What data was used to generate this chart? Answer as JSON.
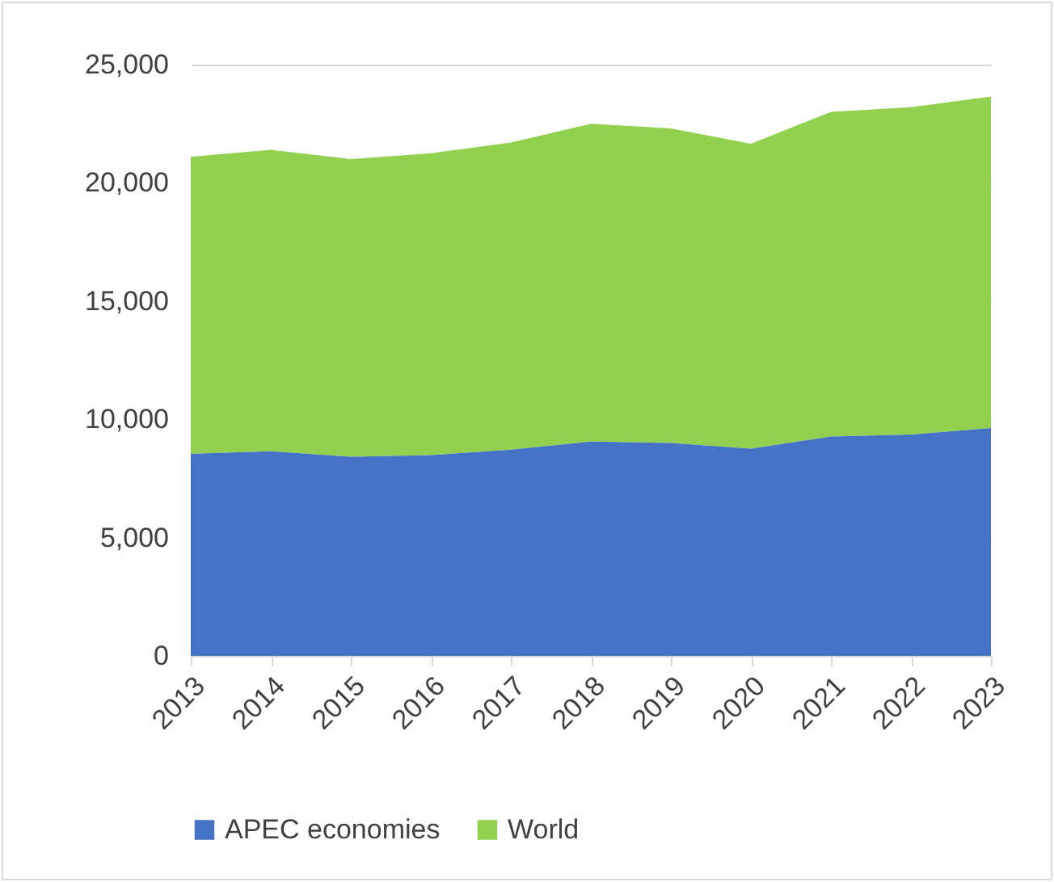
{
  "chart_data": {
    "type": "area",
    "categories": [
      "2013",
      "2014",
      "2015",
      "2016",
      "2017",
      "2018",
      "2019",
      "2020",
      "2021",
      "2022",
      "2023"
    ],
    "series": [
      {
        "name": "APEC economies",
        "color": "#4472c4",
        "values": [
          8540,
          8650,
          8420,
          8490,
          8720,
          9060,
          9000,
          8760,
          9270,
          9360,
          9630
        ]
      },
      {
        "name": "World",
        "color": "#92d050",
        "values": [
          21100,
          21400,
          21000,
          21250,
          21700,
          22500,
          22300,
          21650,
          23000,
          23200,
          23650
        ]
      }
    ],
    "ylim": [
      0,
      25000
    ],
    "yticks": [
      {
        "value": 0,
        "label": "0"
      },
      {
        "value": 5000,
        "label": "5,000"
      },
      {
        "value": 10000,
        "label": "10,000"
      },
      {
        "value": 15000,
        "label": "15,000"
      },
      {
        "value": 20000,
        "label": "20,000"
      },
      {
        "value": 25000,
        "label": "25,000"
      }
    ],
    "grid": "y",
    "legend": "bottom"
  }
}
